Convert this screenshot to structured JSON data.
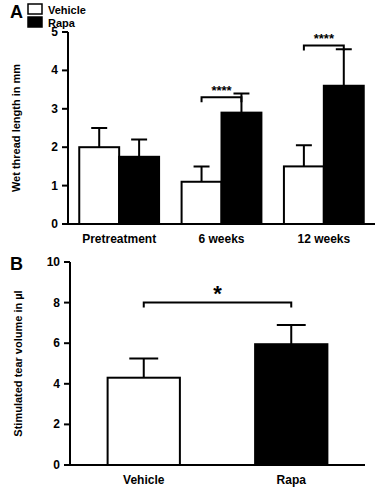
{
  "chart_data": [
    {
      "type": "bar",
      "title": "A",
      "y_label": "Wet thread length in mm",
      "categories": [
        "Pretreatment",
        "6 weeks",
        "12 weeks"
      ],
      "series": [
        {
          "name": "Vehicle",
          "color": "#ffffff",
          "values": [
            2.0,
            1.1,
            1.5
          ],
          "errors": [
            0.5,
            0.4,
            0.55
          ]
        },
        {
          "name": "Rapa",
          "color": "#000000",
          "values": [
            1.75,
            2.9,
            3.6
          ],
          "errors": [
            0.45,
            0.5,
            0.95
          ]
        }
      ],
      "ylim": [
        0,
        5
      ],
      "yticks": [
        0,
        1,
        2,
        3,
        4,
        5
      ],
      "grid": false,
      "legend": "upper left",
      "annotations": [
        {
          "text": "****",
          "category": "6 weeks",
          "y": 3.3
        },
        {
          "text": "****",
          "category": "12 weeks",
          "y": 4.65
        }
      ]
    },
    {
      "type": "bar",
      "title": "B",
      "y_label": "Stimulated tear volume in µl",
      "categories": [
        "Vehicle",
        "Rapa"
      ],
      "values": [
        4.3,
        5.95
      ],
      "errors": [
        0.95,
        0.95
      ],
      "colors": [
        "#ffffff",
        "#000000"
      ],
      "ylim": [
        0,
        10
      ],
      "yticks": [
        0,
        2,
        4,
        6,
        8,
        10
      ],
      "grid": false,
      "annotations": [
        {
          "text": "*",
          "from": "Vehicle",
          "to": "Rapa",
          "y": 8.0
        }
      ]
    }
  ]
}
